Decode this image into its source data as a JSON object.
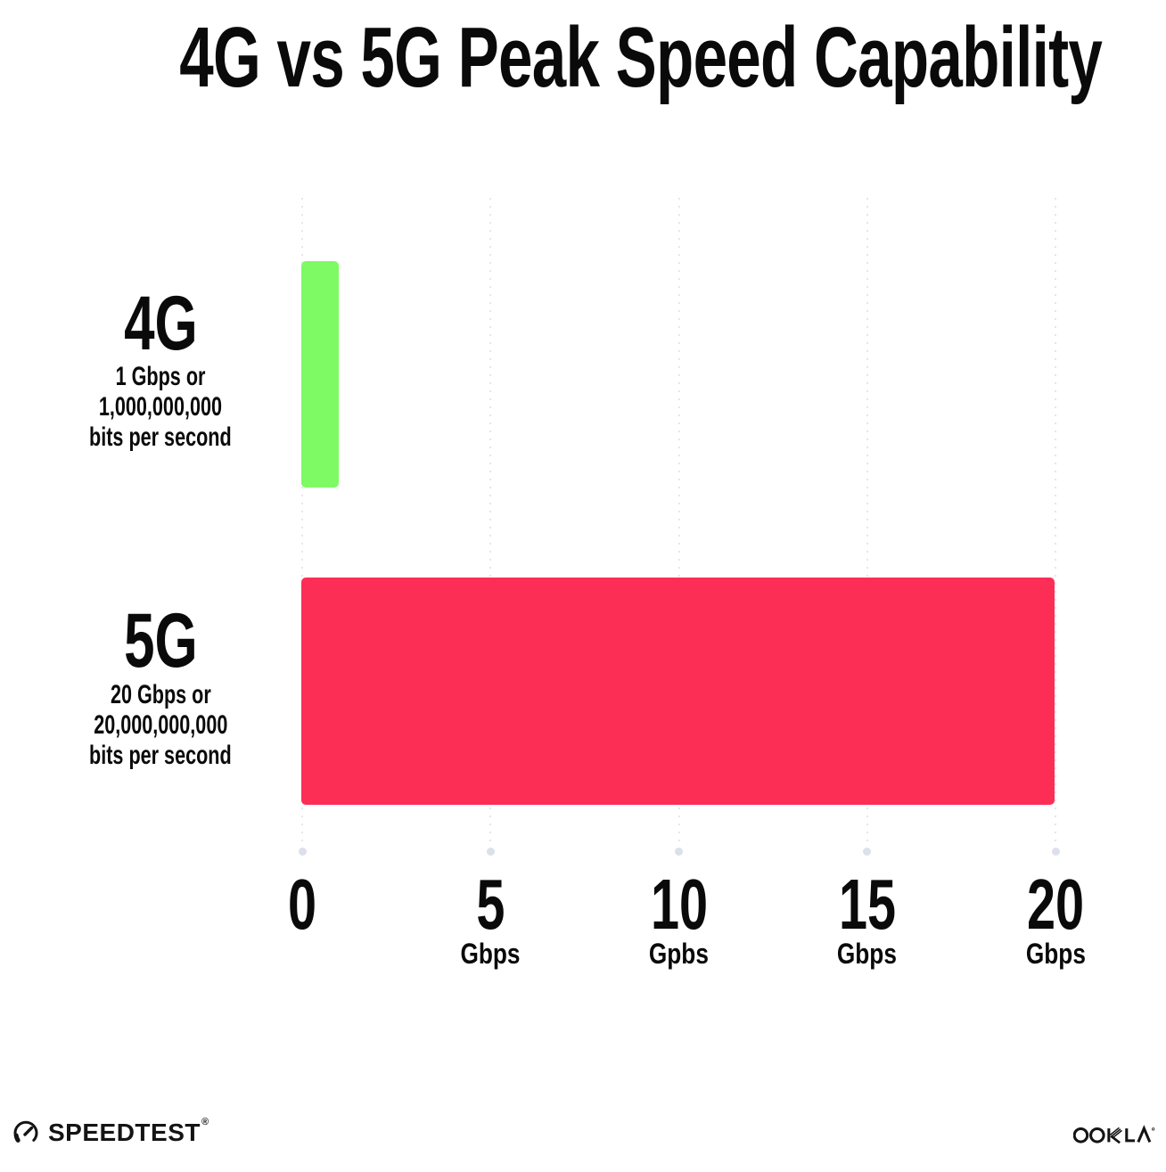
{
  "title": "4G vs 5G Peak Speed Capability",
  "chart_data": {
    "type": "bar",
    "orientation": "horizontal",
    "title": "4G vs 5G Peak Speed Capability",
    "categories": [
      "4G",
      "5G"
    ],
    "values": [
      1,
      20
    ],
    "value_unit": "Gbps",
    "xlim": [
      0,
      20
    ],
    "grid": "vertical-dotted",
    "bars": [
      {
        "label": "4G",
        "value": 1,
        "color": "#7dfa64",
        "sublabel_line1": "1 Gbps or",
        "sublabel_line2": "1,000,000,000",
        "sublabel_line3": "bits per second"
      },
      {
        "label": "5G",
        "value": 20,
        "color": "#fc2e56",
        "sublabel_line1": "20 Gbps or",
        "sublabel_line2": "20,000,000,000",
        "sublabel_line3": "bits per second"
      }
    ],
    "x_ticks": [
      {
        "value": 0,
        "label": "0",
        "unit": ""
      },
      {
        "value": 5,
        "label": "5",
        "unit": "Gbps"
      },
      {
        "value": 10,
        "label": "10",
        "unit": "Gpbs"
      },
      {
        "value": 15,
        "label": "15",
        "unit": "Gbps"
      },
      {
        "value": 20,
        "label": "20",
        "unit": "Gbps"
      }
    ]
  },
  "colors": {
    "bar_4g": "#7dfa64",
    "bar_5g": "#fc2e56",
    "gridline": "#e3e6f0",
    "text": "#0a0a0a",
    "background": "#ffffff"
  },
  "footer": {
    "speedtest_label": "SPEEDTEST",
    "speedtest_trademark": "®",
    "ookla_label": "OOKLA"
  }
}
